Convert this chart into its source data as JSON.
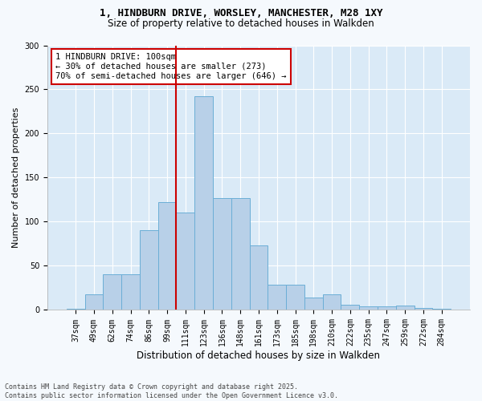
{
  "title_line1": "1, HINDBURN DRIVE, WORSLEY, MANCHESTER, M28 1XY",
  "title_line2": "Size of property relative to detached houses in Walkden",
  "xlabel": "Distribution of detached houses by size in Walkden",
  "ylabel": "Number of detached properties",
  "categories": [
    "37sqm",
    "49sqm",
    "62sqm",
    "74sqm",
    "86sqm",
    "99sqm",
    "111sqm",
    "123sqm",
    "136sqm",
    "148sqm",
    "161sqm",
    "173sqm",
    "185sqm",
    "198sqm",
    "210sqm",
    "222sqm",
    "235sqm",
    "247sqm",
    "259sqm",
    "272sqm",
    "284sqm"
  ],
  "bar_heights": [
    1,
    18,
    40,
    40,
    90,
    122,
    110,
    242,
    127,
    127,
    73,
    29,
    29,
    14,
    18,
    6,
    4,
    4,
    5,
    2,
    1
  ],
  "bar_color": "#b8d0e8",
  "bar_edge_color": "#6baed6",
  "vline_color": "#cc0000",
  "vline_x_index": 5.5,
  "annotation_text": "1 HINDBURN DRIVE: 100sqm\n← 30% of detached houses are smaller (273)\n70% of semi-detached houses are larger (646) →",
  "annotation_box_color": "#cc0000",
  "annotation_bg": "#ffffff",
  "ylim": [
    0,
    300
  ],
  "yticks": [
    0,
    50,
    100,
    150,
    200,
    250,
    300
  ],
  "footer": "Contains HM Land Registry data © Crown copyright and database right 2025.\nContains public sector information licensed under the Open Government Licence v3.0.",
  "plot_bg_color": "#daeaf7",
  "fig_bg_color": "#f5f9fd",
  "grid_color": "#ffffff",
  "title1_fontsize": 9,
  "title2_fontsize": 8.5,
  "ylabel_fontsize": 8,
  "xlabel_fontsize": 8.5,
  "tick_fontsize": 7,
  "footer_fontsize": 6
}
